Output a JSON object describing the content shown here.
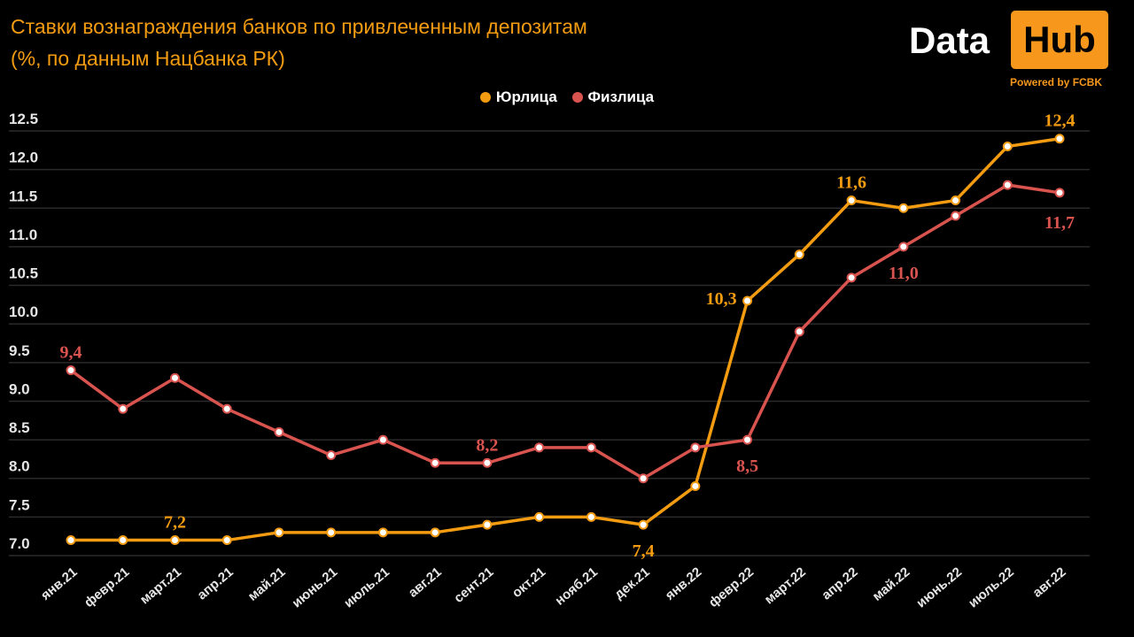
{
  "header": {
    "title_line1": "Ставки вознаграждения банков по привлеченным депозитам",
    "title_line2": "(%, по данным Нацбанка РК)"
  },
  "logo": {
    "data": "Data",
    "hub": "Hub",
    "powered": "Powered by FCBK"
  },
  "chart_data": {
    "type": "line",
    "title": "Ставки вознаграждения банков по привлеченным депозитам (%, по данным Нацбанка РК)",
    "categories": [
      "янв.21",
      "февр.21",
      "март.21",
      "апр.21",
      "май.21",
      "июнь.21",
      "июль.21",
      "авг.21",
      "сент.21",
      "окт.21",
      "нояб.21",
      "дек.21",
      "янв.22",
      "февр.22",
      "март.22",
      "апр.22",
      "май.22",
      "июнь.22",
      "июль.22",
      "авг.22"
    ],
    "ylim": [
      7.0,
      12.5
    ],
    "yticks": [
      "7.0",
      "7.5",
      "8.0",
      "8.5",
      "9.0",
      "9.5",
      "10.0",
      "10.5",
      "11.0",
      "11.5",
      "12.0",
      "12.5"
    ],
    "grid": true,
    "legend_position": "top-center",
    "series": [
      {
        "name": "Юрлица",
        "color": "#f39c12",
        "values": [
          7.2,
          7.2,
          7.2,
          7.2,
          7.3,
          7.3,
          7.3,
          7.3,
          7.4,
          7.5,
          7.5,
          7.4,
          7.9,
          10.3,
          10.9,
          11.6,
          11.5,
          11.6,
          12.3,
          12.4
        ]
      },
      {
        "name": "Физлица",
        "color": "#d9534f",
        "values": [
          9.4,
          8.9,
          9.3,
          8.9,
          8.6,
          8.3,
          8.5,
          8.2,
          8.2,
          8.4,
          8.4,
          8.0,
          8.4,
          8.5,
          9.9,
          10.6,
          11.0,
          11.4,
          11.8,
          11.7
        ]
      }
    ],
    "annotations": [
      {
        "series": 0,
        "index": 2,
        "text": "7,2",
        "pos": "above"
      },
      {
        "series": 0,
        "index": 11,
        "text": "7,4",
        "pos": "below"
      },
      {
        "series": 0,
        "index": 13,
        "text": "10,3",
        "pos": "left"
      },
      {
        "series": 0,
        "index": 15,
        "text": "11,6",
        "pos": "above"
      },
      {
        "series": 0,
        "index": 19,
        "text": "12,4",
        "pos": "above"
      },
      {
        "series": 1,
        "index": 0,
        "text": "9,4",
        "pos": "above"
      },
      {
        "series": 1,
        "index": 8,
        "text": "8,2",
        "pos": "above"
      },
      {
        "series": 1,
        "index": 13,
        "text": "8,5",
        "pos": "below"
      },
      {
        "series": 1,
        "index": 16,
        "text": "11,0",
        "pos": "below"
      },
      {
        "series": 1,
        "index": 19,
        "text": "11,7",
        "pos": "below"
      }
    ]
  }
}
